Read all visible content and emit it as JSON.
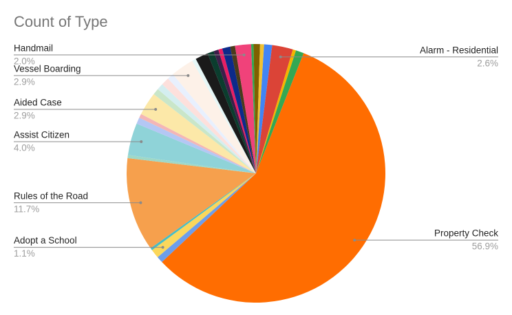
{
  "chart_data": {
    "type": "pie",
    "title": "Count of Type",
    "categories": [
      null,
      null,
      null,
      "Alarm - Residential",
      null,
      null,
      "Property Check",
      null,
      "Adopt a School",
      null,
      "Rules of the Road",
      null,
      "Assist Citizen",
      null,
      null,
      "Aided Case",
      null,
      null,
      null,
      null,
      "Vessel Boarding",
      null,
      null,
      null,
      null,
      null,
      null,
      null,
      "Handmail",
      null,
      null
    ],
    "values": [
      0.5,
      0.5,
      1.0,
      2.6,
      0.4,
      1.0,
      56.9,
      0.8,
      1.1,
      0.3,
      11.7,
      0.4,
      4.0,
      0.8,
      0.5,
      2.9,
      0.8,
      0.8,
      1.0,
      0.8,
      2.9,
      0.5,
      1.6,
      0.8,
      0.6,
      0.5,
      1.0,
      0.6,
      2.0,
      0.3,
      0.3
    ],
    "value_labels": [
      null,
      null,
      null,
      "2.6%",
      null,
      null,
      "56.9%",
      null,
      "1.1%",
      null,
      "11.7%",
      null,
      "4.0%",
      null,
      null,
      "2.9%",
      null,
      null,
      null,
      null,
      "2.9%",
      null,
      null,
      null,
      null,
      null,
      null,
      null,
      "2.0%",
      null,
      null
    ],
    "colors": [
      "#7f6000",
      "#f1c232",
      "#4285f4",
      "#db4437",
      "#f4b400",
      "#34a853",
      "#ff6d01",
      "#6d9eeb",
      "#fbd75b",
      "#46bdc6",
      "#f6a04d",
      "#9fd8c7",
      "#8fd3d8",
      "#b4c7f4",
      "#f4b6b6",
      "#fce8a8",
      "#c9e6c9",
      "#d4eef0",
      "#fde0dc",
      "#e8f0fe",
      "#fdf1e8",
      "#e6f7f7",
      "#1a1a1a",
      "#0b3d2e",
      "#3c1f4a",
      "#e91e63",
      "#0d2a8a",
      "#4a3b1c",
      "#f0427a",
      "#34a853",
      "#7f6000"
    ]
  }
}
